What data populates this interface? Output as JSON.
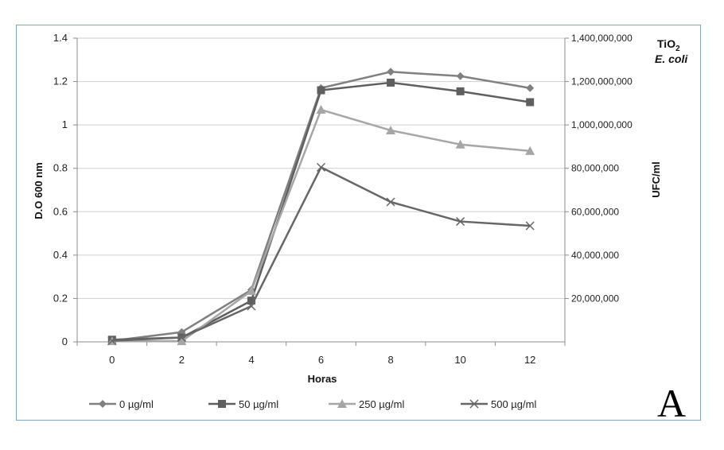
{
  "chart_data": {
    "type": "line",
    "xlabel": "Horas",
    "ylabel": "D.O 600 nm",
    "y2label": "UFC/ml",
    "x": [
      0,
      2,
      4,
      6,
      8,
      10,
      12
    ],
    "xticks": [
      "0",
      "2",
      "4",
      "6",
      "8",
      "10",
      "12"
    ],
    "ylim": [
      0,
      1.4
    ],
    "yticks": [
      "0",
      "0.2",
      "0.4",
      "0.6",
      "0.8",
      "1",
      "1.2",
      "1.4"
    ],
    "y2lim": [
      0,
      1400000000
    ],
    "y2ticks": [
      "20,000,000",
      "40,000,000",
      "60,000,000",
      "80,000,000",
      "1,000,000,000",
      "1,200,000,000",
      "1,400,000,000"
    ],
    "grid": "horizontal",
    "legend_position": "bottom",
    "annotation_main": "TiO",
    "annotation_sub": "2",
    "annotation_line2": "E. coli",
    "panel_label": "A",
    "series": [
      {
        "name": "0 µg/ml",
        "marker": "diamond",
        "color": "#808080",
        "values": [
          0.005,
          0.045,
          0.24,
          1.17,
          1.245,
          1.225,
          1.17
        ]
      },
      {
        "name": "50 µg/ml",
        "marker": "square",
        "color": "#5f5f5f",
        "values": [
          0.01,
          0.02,
          0.19,
          1.16,
          1.195,
          1.155,
          1.105
        ]
      },
      {
        "name": "250 µg/ml",
        "marker": "triangle",
        "color": "#a6a6a6",
        "values": [
          0.003,
          0.003,
          0.235,
          1.07,
          0.975,
          0.91,
          0.88
        ]
      },
      {
        "name": "500 µg/ml",
        "marker": "x",
        "color": "#666666",
        "values": [
          0.005,
          0.02,
          0.165,
          0.805,
          0.645,
          0.555,
          0.535
        ]
      }
    ]
  }
}
